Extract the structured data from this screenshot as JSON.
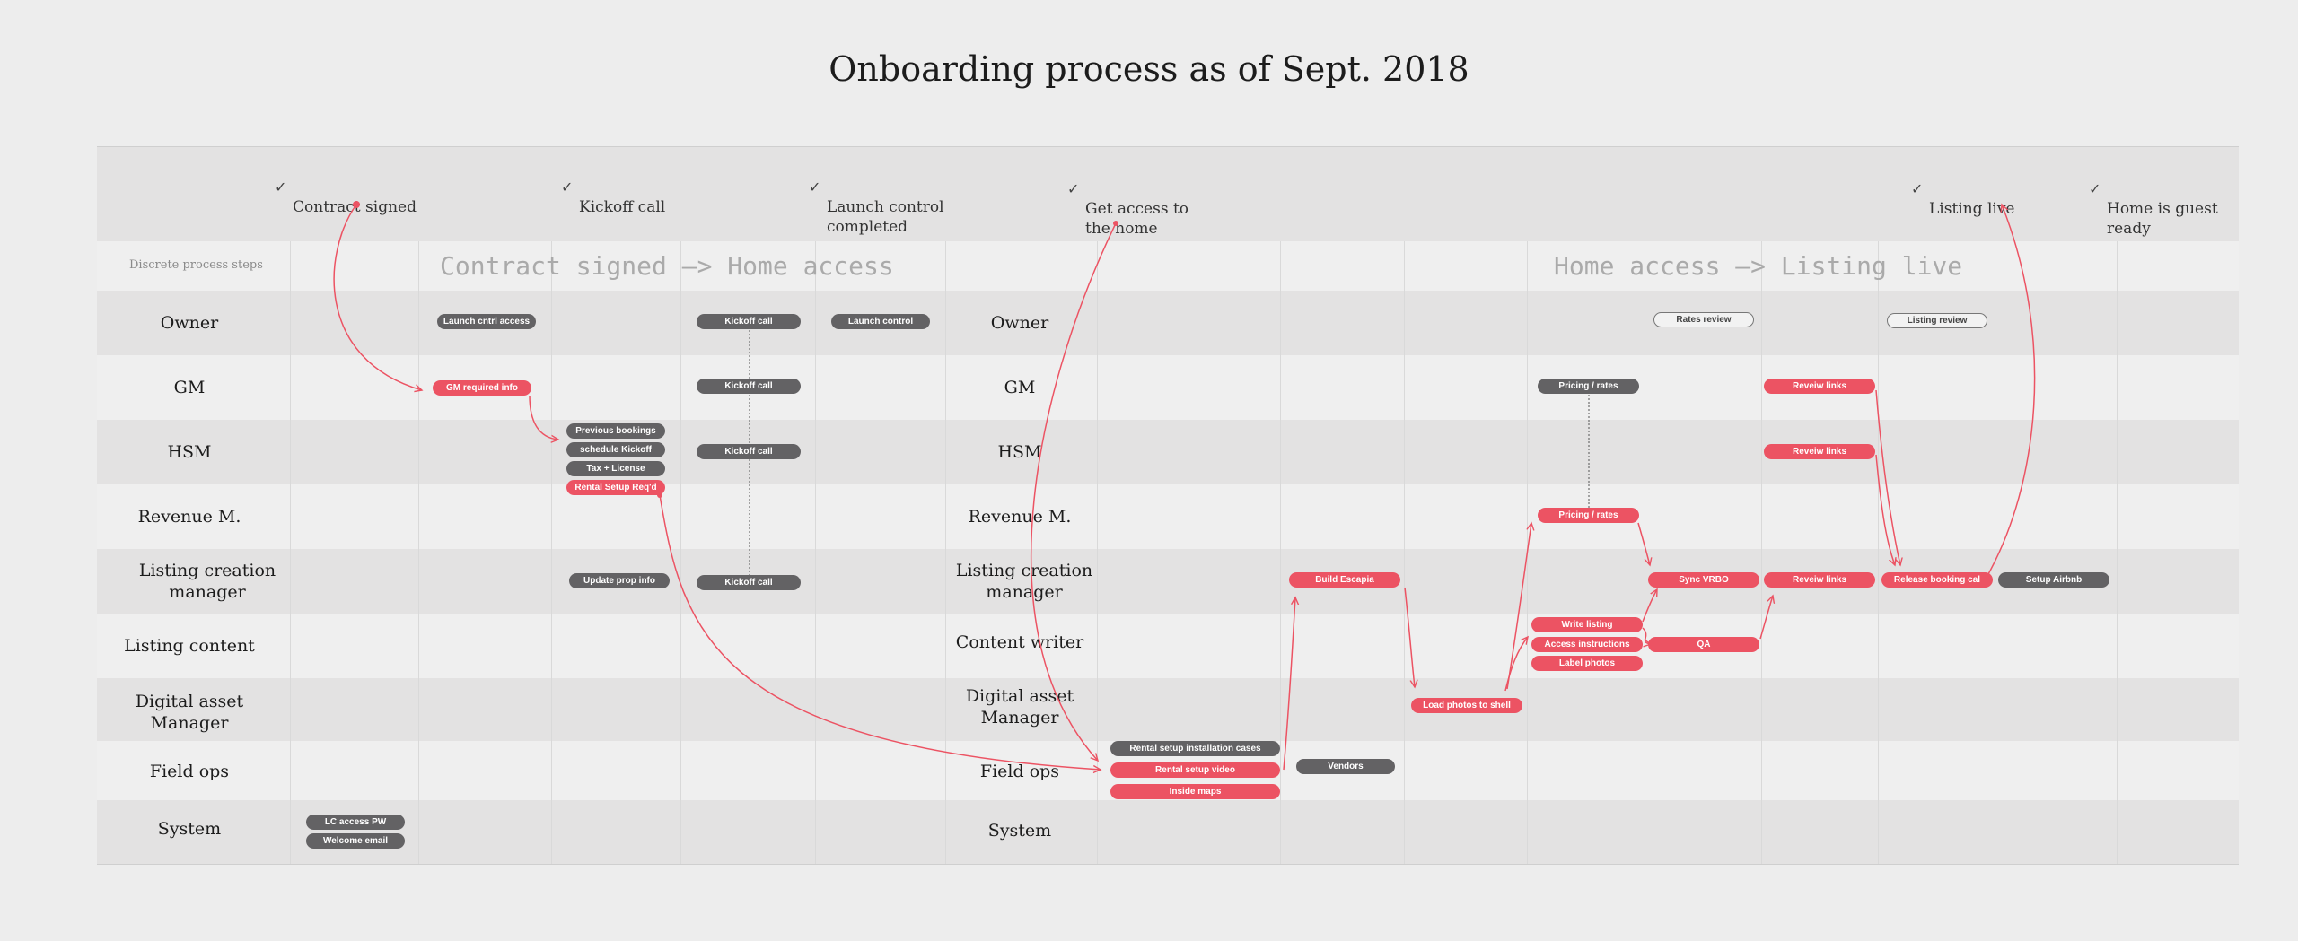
{
  "title": "Onboarding process as of Sept. 2018",
  "milestones": [
    {
      "text": "Contract signed"
    },
    {
      "text": "Kickoff call"
    },
    {
      "text": "Launch control\ncompleted"
    },
    {
      "text": "Get access to\nthe home"
    },
    {
      "text": "Listing live"
    },
    {
      "text": "Home is guest\nready"
    }
  ],
  "discrete_label": "Discrete process steps",
  "sections": [
    {
      "label": "Contract signed —> Home access"
    },
    {
      "label": "Home access —> Listing live"
    }
  ],
  "roles_left": [
    "Owner",
    "GM",
    "HSM",
    "Revenue M.",
    "Listing creation\nmanager",
    "Listing content",
    "Digital asset\nManager",
    "Field ops",
    "System"
  ],
  "roles_right": [
    "Owner",
    "GM",
    "HSM",
    "Revenue M.",
    "Listing creation\nmanager",
    "Content writer",
    "Digital asset\nManager",
    "Field ops",
    "System"
  ],
  "tasks": [
    {
      "label": "Launch cntrl access",
      "style": "gray"
    },
    {
      "label": "Kickoff call",
      "style": "gray"
    },
    {
      "label": "Launch control",
      "style": "gray"
    },
    {
      "label": "GM required info",
      "style": "red"
    },
    {
      "label": "Kickoff call",
      "style": "gray"
    },
    {
      "label": "Previous bookings",
      "style": "gray"
    },
    {
      "label": "schedule Kickoff",
      "style": "gray"
    },
    {
      "label": "Tax + License",
      "style": "gray"
    },
    {
      "label": "Rental Setup Req'd",
      "style": "red"
    },
    {
      "label": "Kickoff call",
      "style": "gray"
    },
    {
      "label": "Update prop info",
      "style": "gray"
    },
    {
      "label": "Kickoff call",
      "style": "gray"
    },
    {
      "label": "LC access PW",
      "style": "gray"
    },
    {
      "label": "Welcome email",
      "style": "gray"
    },
    {
      "label": "Rates review",
      "style": "outline"
    },
    {
      "label": "Listing review",
      "style": "outline"
    },
    {
      "label": "Pricing / rates",
      "style": "gray"
    },
    {
      "label": "Reveiw links",
      "style": "red"
    },
    {
      "label": "Reveiw links",
      "style": "red"
    },
    {
      "label": "Pricing / rates",
      "style": "red"
    },
    {
      "label": "Build Escapia",
      "style": "red"
    },
    {
      "label": "Sync VRBO",
      "style": "red"
    },
    {
      "label": "Reveiw links",
      "style": "red"
    },
    {
      "label": "Release booking cal",
      "style": "red"
    },
    {
      "label": "Setup Airbnb",
      "style": "gray"
    },
    {
      "label": "Write listing",
      "style": "red"
    },
    {
      "label": "Access instructions",
      "style": "red"
    },
    {
      "label": "Label photos",
      "style": "red"
    },
    {
      "label": "QA",
      "style": "red"
    },
    {
      "label": "Load photos to shell",
      "style": "red"
    },
    {
      "label": "Rental setup installation cases",
      "style": "gray"
    },
    {
      "label": "Rental setup video",
      "style": "red"
    },
    {
      "label": "Inside maps",
      "style": "red"
    },
    {
      "label": "Vendors",
      "style": "gray"
    }
  ],
  "colors": {
    "accent": "#ec5363",
    "task_gray": "#636264",
    "background": "#ededed",
    "band_dark": "#e3e2e2"
  }
}
